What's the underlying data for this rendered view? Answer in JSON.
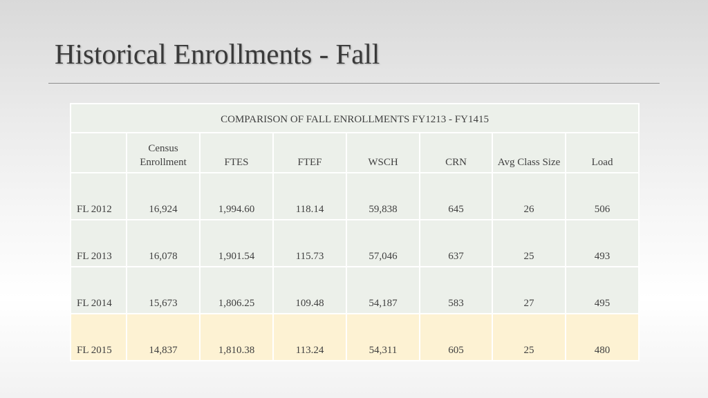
{
  "slide": {
    "title": "Historical Enrollments - Fall"
  },
  "table": {
    "caption": "COMPARISON OF FALL ENROLLMENTS FY1213 - FY1415",
    "columns": [
      "",
      "Census Enrollment",
      "FTES",
      "FTEF",
      "WSCH",
      "CRN",
      "Avg Class Size",
      "Load"
    ],
    "rows": [
      [
        "FL 2012",
        "16,924",
        "1,994.60",
        "118.14",
        "59,838",
        "645",
        "26",
        "506"
      ],
      [
        "FL 2013",
        "16,078",
        "1,901.54",
        "115.73",
        "57,046",
        "637",
        "25",
        "493"
      ],
      [
        "FL 2014",
        "15,673",
        "1,806.25",
        "109.48",
        "54,187",
        "583",
        "27",
        "495"
      ],
      [
        "FL 2015",
        "14,837",
        "1,810.38",
        "113.24",
        "54,311",
        "605",
        "25",
        "480"
      ]
    ],
    "highlight_row_index": 3,
    "colors": {
      "cell_background": "#ecf0ea",
      "highlight_background": "#fdf2d3"
    }
  }
}
